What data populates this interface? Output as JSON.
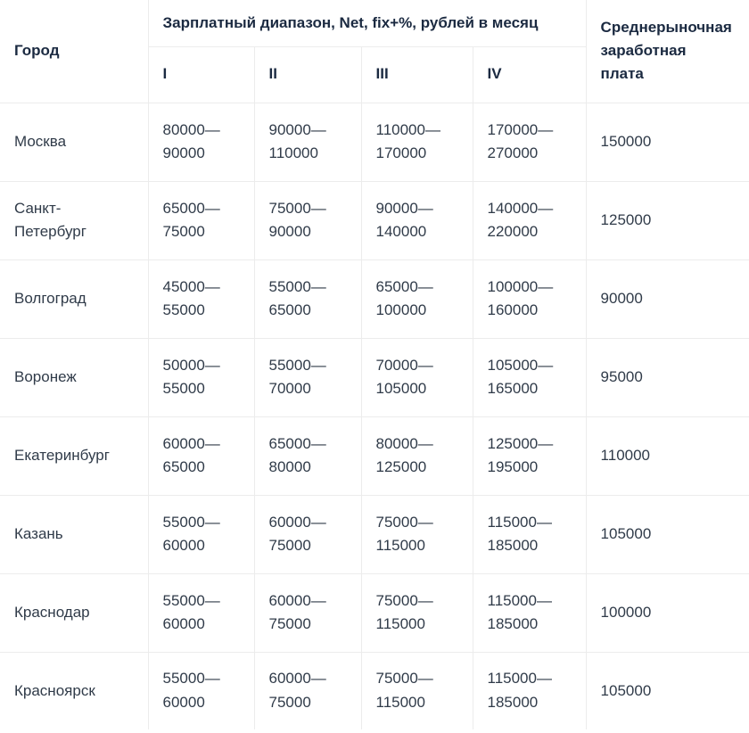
{
  "table": {
    "header": {
      "city": "Город",
      "salary_group": "Зарплатный диапазон, Net, fix+%, рублей в месяц",
      "quartiles": {
        "q1": "I",
        "q2": "II",
        "q3": "III",
        "q4": "IV"
      },
      "market_average": "Среднерыночная\nзаработная\nплата"
    },
    "rows": [
      {
        "city": "Москва",
        "q1": "80000—\n90000",
        "q2": "90000—\n110000",
        "q3": "110000—\n170000",
        "q4": "170000—\n270000",
        "avg": "150000"
      },
      {
        "city": "Санкт-\nПетербург",
        "q1": "65000—\n75000",
        "q2": "75000—\n90000",
        "q3": "90000—\n140000",
        "q4": "140000—\n220000",
        "avg": "125000"
      },
      {
        "city": "Волгоград",
        "q1": "45000—\n55000",
        "q2": "55000—\n65000",
        "q3": "65000—\n100000",
        "q4": "100000—\n160000",
        "avg": "90000"
      },
      {
        "city": "Воронеж",
        "q1": "50000—\n55000",
        "q2": "55000—\n70000",
        "q3": "70000—\n105000",
        "q4": "105000—\n165000",
        "avg": "95000"
      },
      {
        "city": "Екатеринбург",
        "q1": "60000—\n65000",
        "q2": "65000—\n80000",
        "q3": "80000—\n125000",
        "q4": "125000—\n195000",
        "avg": "110000"
      },
      {
        "city": "Казань",
        "q1": "55000—\n60000",
        "q2": "60000—\n75000",
        "q3": "75000—\n115000",
        "q4": "115000—\n185000",
        "avg": "105000"
      },
      {
        "city": "Краснодар",
        "q1": "55000—\n60000",
        "q2": "60000—\n75000",
        "q3": "75000—\n115000",
        "q4": "115000—\n185000",
        "avg": "100000"
      },
      {
        "city": "Красноярск",
        "q1": "55000—\n60000",
        "q2": "60000—\n75000",
        "q3": "75000—\n115000",
        "q4": "115000—\n185000",
        "avg": "105000"
      }
    ],
    "colors": {
      "header_text": "#1b2a41",
      "body_text": "#303b49",
      "border": "#ececec",
      "background": "#ffffff"
    }
  }
}
